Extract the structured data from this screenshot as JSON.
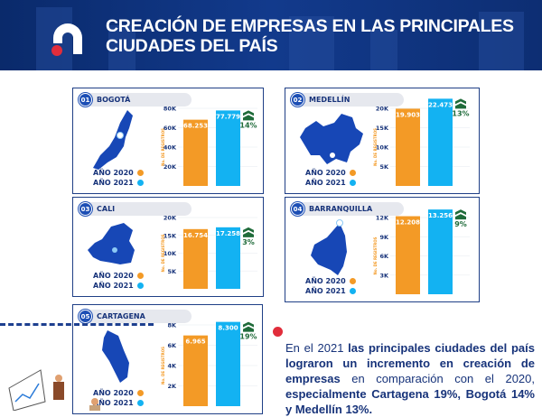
{
  "header": {
    "title_line1": "CREACIÓN DE EMPRESAS EN LAS PRINCIPALES",
    "title_line2": "CIUDADES DEL PAÍS"
  },
  "legend": {
    "y2020": "AÑO 2020",
    "y2021": "AÑO 2021"
  },
  "colors": {
    "y2020": "#f39a26",
    "y2021": "#13b2f2",
    "growth": "#1f6b3a",
    "navy": "#17337a"
  },
  "chart_data": [
    {
      "type": "bar",
      "number": "01",
      "title": "BOGOTÁ",
      "ylabel": "No. DE REGISTROS",
      "categories": [
        "AÑO 2020",
        "AÑO 2021"
      ],
      "values": [
        68253,
        77779
      ],
      "value_labels": [
        "68.253",
        "77.779"
      ],
      "growth": "14%",
      "ticks": [
        20000,
        40000,
        60000,
        80000
      ],
      "tick_labels": [
        "20K",
        "40K",
        "60K",
        "80K"
      ],
      "ylim": [
        0,
        80000
      ]
    },
    {
      "type": "bar",
      "number": "02",
      "title": "MEDELLÍN",
      "ylabel": "No. DE REGISTROS",
      "categories": [
        "AÑO 2020",
        "AÑO 2021"
      ],
      "values": [
        19903,
        22473
      ],
      "value_labels": [
        "19.903",
        "22.473"
      ],
      "growth": "13%",
      "ticks": [
        5000,
        10000,
        15000,
        20000
      ],
      "tick_labels": [
        "5K",
        "10K",
        "15K",
        "20K"
      ],
      "ylim": [
        0,
        20000
      ]
    },
    {
      "type": "bar",
      "number": "03",
      "title": "CALI",
      "ylabel": "No. DE REGISTROS",
      "categories": [
        "AÑO 2020",
        "AÑO 2021"
      ],
      "values": [
        16754,
        17258
      ],
      "value_labels": [
        "16.754",
        "17.258"
      ],
      "growth": "3%",
      "ticks": [
        5000,
        10000,
        15000,
        20000
      ],
      "tick_labels": [
        "5K",
        "10K",
        "15K",
        "20K"
      ],
      "ylim": [
        0,
        20000
      ]
    },
    {
      "type": "bar",
      "number": "04",
      "title": "BARRANQUILLA",
      "ylabel": "No. DE REGISTROS",
      "categories": [
        "AÑO 2020",
        "AÑO 2021"
      ],
      "values": [
        12208,
        13256
      ],
      "value_labels": [
        "12.208",
        "13.256"
      ],
      "growth": "9%",
      "ticks": [
        3000,
        6000,
        9000,
        12000
      ],
      "tick_labels": [
        "3K",
        "6K",
        "9K",
        "12K"
      ],
      "ylim": [
        0,
        12000
      ]
    },
    {
      "type": "bar",
      "number": "05",
      "title": "CARTAGENA",
      "ylabel": "No. DE REGISTROS",
      "categories": [
        "AÑO 2020",
        "AÑO 2021"
      ],
      "values": [
        6965,
        8300
      ],
      "value_labels": [
        "6.965",
        "8.300"
      ],
      "growth": "19%",
      "ticks": [
        2000,
        4000,
        6000,
        8000
      ],
      "tick_labels": [
        "2K",
        "4K",
        "6K",
        "8K"
      ],
      "ylim": [
        0,
        8000
      ]
    }
  ],
  "summary": {
    "p1": "En el 2021 ",
    "b1": "las principales ciudades del país lograron un incremento en creación de empresas",
    "p2": " en comparación con el 2020, ",
    "b2": "especialmente Cartagena 19%, Bogotá 14% y Medellín 13%."
  }
}
